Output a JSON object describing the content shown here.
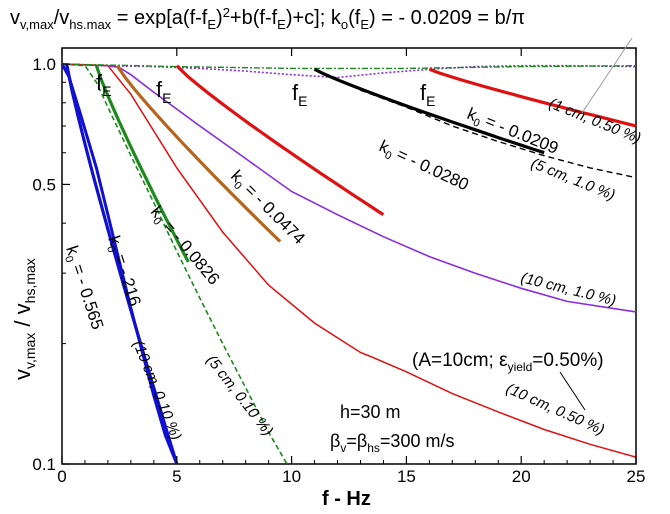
{
  "chart_data": {
    "type": "line",
    "scale": {
      "y": "log"
    },
    "xlim": [
      0,
      25
    ],
    "ylim": [
      0.1,
      1.0
    ],
    "xticks": [
      "0",
      "5",
      "10",
      "15",
      "20",
      "25"
    ],
    "yticks": [
      "1.0",
      "0.5",
      "0.1"
    ],
    "xlabel": "f - Hz",
    "ylabel": {
      "pre": "v",
      "s1": "v,max",
      "mid": " / v",
      "s2": "hs,max"
    },
    "title": {
      "a": "v",
      "a_sub": "v,max",
      "b": "/v",
      "b_sub": "hs.max",
      "c": " = exp[a(f-f",
      "c_sub": "E",
      "d": ")",
      "d_sup": "2",
      "e": "+b(f-f",
      "e_sub": "E",
      "f": ")+c];   k",
      "f_sub": "o",
      "g": "(f",
      "g_sub": "E",
      "h": ") = - 0.0209 = b/π"
    },
    "colors": {
      "green": "#1e8a1e",
      "blue": "#1010d0",
      "brown": "#b5651d",
      "red": "#e01010",
      "black": "#000000",
      "purple": "#8a2be2"
    },
    "series": [
      {
        "name": "(10 cm, 0.10 %)",
        "x": [
          0,
          0.3,
          0.8,
          1.5,
          2.0,
          2.5,
          3.0,
          3.5,
          4.0,
          4.5,
          5.0
        ],
        "y": [
          1.0,
          0.93,
          0.75,
          0.55,
          0.42,
          0.32,
          0.245,
          0.19,
          0.148,
          0.118,
          0.1
        ]
      },
      {
        "name": "(5 cm, 0.10 %)",
        "x": [
          0,
          1.0,
          1.5,
          2.0,
          3.0,
          4.0,
          5.0,
          6.0,
          7.0,
          8.0,
          9.0,
          9.8
        ],
        "y": [
          1.0,
          0.99,
          0.9,
          0.78,
          0.59,
          0.45,
          0.34,
          0.26,
          0.2,
          0.155,
          0.12,
          0.1
        ]
      },
      {
        "name": "(10 cm, 1.0 %)",
        "x": [
          0,
          2.0,
          2.5,
          3.0,
          4.0,
          6.0,
          8.0,
          10.0,
          12.0,
          14.0,
          16.0,
          18.0,
          20.0,
          22.0,
          25.0
        ],
        "y": [
          1.0,
          0.99,
          0.98,
          0.94,
          0.85,
          0.7,
          0.58,
          0.48,
          0.42,
          0.37,
          0.33,
          0.3,
          0.275,
          0.255,
          0.24
        ]
      },
      {
        "name": "(10 cm, 0.50 %)",
        "x": [
          0,
          2.0,
          3.0,
          5.0,
          7.0,
          9.0,
          11.0,
          13.0,
          13.5,
          15.0,
          17.0,
          19.0,
          21.0,
          23.0,
          25.0
        ],
        "y": [
          1.0,
          0.99,
          0.84,
          0.55,
          0.38,
          0.28,
          0.225,
          0.19,
          0.185,
          0.17,
          0.15,
          0.135,
          0.122,
          0.112,
          0.104
        ]
      },
      {
        "name": "(5 cm, 1.0 %)",
        "x": [
          11,
          12,
          13,
          15,
          17,
          19,
          21,
          23,
          25
        ],
        "y": [
          0.97,
          0.92,
          0.86,
          0.78,
          0.7,
          0.64,
          0.59,
          0.55,
          0.52
        ]
      },
      {
        "name": "(1 cm, 0.50 %)",
        "x": [
          0,
          2,
          4,
          6,
          8,
          10,
          12,
          14,
          16,
          18,
          20,
          22,
          25
        ],
        "y": [
          1.0,
          0.99,
          0.985,
          0.975,
          0.96,
          0.94,
          0.925,
          0.95,
          0.97,
          0.985,
          0.99,
          0.99,
          0.985
        ]
      }
    ],
    "fits": [
      {
        "label": "k",
        "sub": "0",
        "value": " = - 0.565",
        "x": [
          0.2,
          5.0
        ],
        "y": [
          1.0,
          0.1
        ]
      },
      {
        "label": "k",
        "sub": "0",
        "value": " = -.216",
        "x": [
          1.5,
          5.5
        ],
        "y": [
          0.99,
          0.32
        ]
      },
      {
        "label": "k",
        "sub": "0",
        "value": " = - 0.0826",
        "x": [
          2.4,
          9.5
        ],
        "y": [
          0.99,
          0.36
        ]
      },
      {
        "label": "k",
        "sub": "0",
        "value": " = - 0.0474",
        "x": [
          5.0,
          14.0
        ],
        "y": [
          0.99,
          0.42
        ]
      },
      {
        "label": "k",
        "sub": "0",
        "value": " = - 0.0280",
        "x": [
          11.0,
          21.0
        ],
        "y": [
          0.97,
          0.6
        ]
      },
      {
        "label": "k",
        "sub": "0",
        "value": " = - 0.0209",
        "x": [
          16.0,
          25.0
        ],
        "y": [
          0.97,
          0.7
        ]
      }
    ],
    "annotations": {
      "fE": {
        "main": "f",
        "sub": "E"
      },
      "legend_box": {
        "pre": "(A=10cm; ε",
        "sub": "yield",
        "post": "=0.50%)"
      },
      "h": "h=30 m",
      "beta": {
        "b1": "β",
        "s1": "v",
        "mid": "=β",
        "s2": "hs",
        "post": "=300 m/s"
      }
    }
  }
}
